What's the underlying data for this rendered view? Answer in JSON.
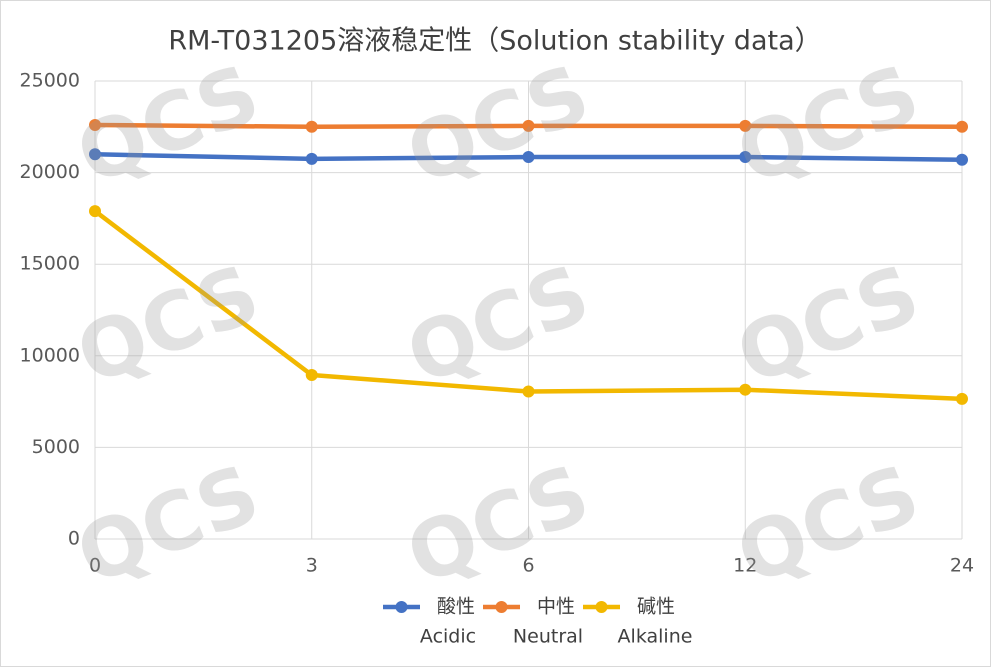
{
  "chart_data": {
    "type": "line",
    "title": "RM-T031205溶液稳定性（Solution stability data）",
    "watermark": "QCS",
    "categories": [
      "0",
      "3",
      "6",
      "12",
      "24"
    ],
    "series": [
      {
        "name": "酸性",
        "name_en": "Acidic",
        "color": "#4472c4",
        "values": [
          21000,
          20750,
          20850,
          20850,
          20700
        ]
      },
      {
        "name": "中性",
        "name_en": "Neutral",
        "color": "#ed7d31",
        "values": [
          22600,
          22500,
          22550,
          22550,
          22500
        ]
      },
      {
        "name": "碱性",
        "name_en": "Alkaline",
        "color": "#f2b800",
        "values": [
          17900,
          8950,
          8050,
          8150,
          7650
        ]
      }
    ],
    "ylim": [
      0,
      25000
    ],
    "yticks": [
      0,
      5000,
      10000,
      15000,
      20000,
      25000
    ],
    "grid": true,
    "legend": "bottom"
  }
}
